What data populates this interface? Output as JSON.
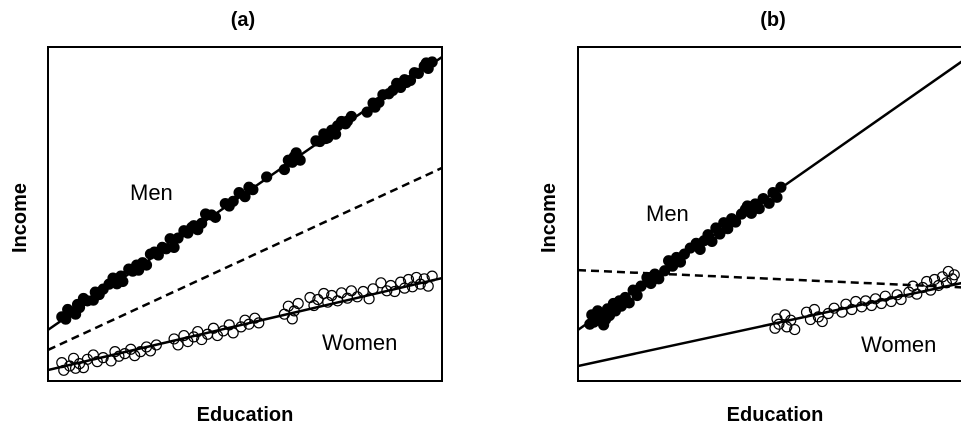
{
  "chart_data": [
    {
      "type": "scatter",
      "title": "(a)",
      "xlabel": "Education",
      "ylabel": "Income",
      "xlim": [
        0,
        100
      ],
      "ylim": [
        0,
        100
      ],
      "tick_labels": false,
      "grid": false,
      "legend": "none",
      "series": [
        {
          "name": "Men",
          "marker": "filled-circle",
          "color": "#000000",
          "points": [
            [
              3.5,
              19.2
            ],
            [
              4.5,
              18.5
            ],
            [
              5.0,
              21.4
            ],
            [
              6.0,
              20.7
            ],
            [
              7.0,
              20.0
            ],
            [
              7.5,
              22.9
            ],
            [
              8.0,
              22.0
            ],
            [
              9.0,
              24.7
            ],
            [
              10.0,
              24.0
            ],
            [
              11.5,
              24.2
            ],
            [
              12.0,
              26.6
            ],
            [
              13.0,
              25.9
            ],
            [
              14.0,
              27.5
            ],
            [
              15.5,
              29.0
            ],
            [
              16.5,
              30.8
            ],
            [
              17.5,
              29.1
            ],
            [
              18.5,
              31.4
            ],
            [
              19.0,
              29.8
            ],
            [
              20.5,
              33.5
            ],
            [
              21.5,
              32.9
            ],
            [
              22.5,
              34.7
            ],
            [
              23.0,
              33.2
            ],
            [
              24.0,
              35.4
            ],
            [
              25.0,
              34.7
            ],
            [
              26.0,
              38.0
            ],
            [
              27.0,
              38.6
            ],
            [
              28.0,
              37.7
            ],
            [
              29.0,
              40.0
            ],
            [
              30.0,
              39.6
            ],
            [
              31.0,
              42.6
            ],
            [
              32.0,
              40.0
            ],
            [
              33.0,
              42.8
            ],
            [
              34.5,
              45.0
            ],
            [
              35.5,
              44.3
            ],
            [
              36.5,
              46.0
            ],
            [
              37.0,
              46.5
            ],
            [
              38.0,
              45.3
            ],
            [
              39.0,
              47.2
            ],
            [
              40.0,
              50.0
            ],
            [
              41.5,
              49.7
            ],
            [
              42.5,
              49.0
            ],
            [
              45.0,
              53.1
            ],
            [
              46.0,
              52.4
            ],
            [
              47.0,
              53.8
            ],
            [
              48.5,
              56.4
            ],
            [
              50.0,
              55.2
            ],
            [
              51.0,
              58.0
            ],
            [
              52.0,
              57.3
            ],
            [
              55.5,
              61.1
            ],
            [
              60.0,
              63.3
            ],
            [
              61.0,
              66.1
            ],
            [
              62.0,
              65.5
            ],
            [
              62.5,
              67.2
            ],
            [
              63.0,
              68.3
            ],
            [
              64.0,
              66.1
            ],
            [
              68.0,
              71.9
            ],
            [
              69.0,
              71.7
            ],
            [
              70.0,
              74.0
            ],
            [
              70.5,
              72.6
            ],
            [
              71.0,
              72.8
            ],
            [
              72.0,
              75.1
            ],
            [
              73.0,
              73.9
            ],
            [
              73.5,
              76.4
            ],
            [
              74.5,
              77.7
            ],
            [
              75.5,
              77.0
            ],
            [
              76.0,
              77.8
            ],
            [
              77.0,
              79.2
            ],
            [
              81.0,
              80.5
            ],
            [
              82.5,
              83.2
            ],
            [
              83.0,
              82.0
            ],
            [
              84.0,
              83.4
            ],
            [
              85.0,
              85.7
            ],
            [
              86.5,
              86.0
            ],
            [
              87.5,
              87.0
            ],
            [
              88.5,
              89.1
            ],
            [
              89.5,
              87.9
            ],
            [
              90.5,
              90.2
            ],
            [
              91.0,
              89.4
            ],
            [
              92.0,
              90.0
            ],
            [
              93.0,
              92.3
            ],
            [
              94.0,
              92.1
            ],
            [
              95.5,
              94.3
            ],
            [
              96.0,
              95.2
            ],
            [
              96.5,
              93.6
            ],
            [
              97.5,
              95.5
            ]
          ],
          "fit": {
            "x": [
              0,
              100
            ],
            "y": [
              15.3,
              97.0
            ],
            "style": "solid"
          }
        },
        {
          "name": "Women",
          "marker": "open-circle",
          "color": "#000000",
          "points": [
            [
              3.5,
              5.5
            ],
            [
              4.0,
              3.2
            ],
            [
              5.5,
              4.5
            ],
            [
              6.5,
              6.8
            ],
            [
              7.0,
              3.8
            ],
            [
              8.0,
              5.2
            ],
            [
              9.0,
              4.0
            ],
            [
              10.0,
              6.5
            ],
            [
              11.5,
              7.8
            ],
            [
              12.5,
              5.8
            ],
            [
              14.0,
              7.0
            ],
            [
              16.0,
              6.0
            ],
            [
              17.0,
              8.8
            ],
            [
              18.0,
              7.4
            ],
            [
              19.5,
              8.2
            ],
            [
              21.0,
              9.5
            ],
            [
              22.0,
              7.6
            ],
            [
              23.5,
              8.8
            ],
            [
              25.0,
              10.2
            ],
            [
              26.0,
              9.0
            ],
            [
              27.5,
              10.8
            ],
            [
              32.0,
              12.6
            ],
            [
              33.0,
              10.8
            ],
            [
              34.5,
              13.6
            ],
            [
              35.5,
              11.8
            ],
            [
              37.0,
              13.2
            ],
            [
              38.0,
              14.8
            ],
            [
              39.0,
              12.4
            ],
            [
              40.5,
              14.0
            ],
            [
              42.0,
              15.8
            ],
            [
              43.0,
              13.6
            ],
            [
              44.5,
              15.0
            ],
            [
              46.0,
              16.8
            ],
            [
              47.0,
              14.4
            ],
            [
              49.0,
              16.2
            ],
            [
              50.0,
              18.2
            ],
            [
              51.0,
              17.0
            ],
            [
              52.5,
              18.8
            ],
            [
              53.5,
              17.4
            ],
            [
              60.0,
              20.0
            ],
            [
              61.0,
              22.4
            ],
            [
              62.0,
              18.6
            ],
            [
              62.5,
              21.0
            ],
            [
              63.5,
              23.2
            ],
            [
              66.5,
              25.0
            ],
            [
              67.5,
              22.6
            ],
            [
              68.5,
              24.4
            ],
            [
              70.0,
              26.2
            ],
            [
              71.0,
              23.6
            ],
            [
              72.0,
              25.6
            ],
            [
              73.5,
              24.0
            ],
            [
              74.5,
              26.4
            ],
            [
              76.0,
              24.8
            ],
            [
              77.0,
              27.0
            ],
            [
              78.5,
              25.2
            ],
            [
              80.0,
              26.8
            ],
            [
              81.5,
              24.6
            ],
            [
              82.5,
              27.6
            ],
            [
              84.5,
              29.4
            ],
            [
              86.0,
              27.0
            ],
            [
              87.0,
              28.6
            ],
            [
              88.0,
              26.8
            ],
            [
              89.5,
              29.6
            ],
            [
              90.5,
              27.8
            ],
            [
              91.5,
              30.4
            ],
            [
              92.5,
              28.2
            ],
            [
              93.5,
              31.0
            ],
            [
              94.5,
              29.0
            ],
            [
              95.5,
              30.6
            ],
            [
              96.5,
              28.4
            ],
            [
              97.5,
              31.4
            ]
          ],
          "fit": {
            "x": [
              0,
              100
            ],
            "y": [
              3.3,
              30.8
            ],
            "style": "solid"
          }
        }
      ],
      "overall_fit": {
        "x": [
          0,
          100
        ],
        "y": [
          9.3,
          63.8
        ],
        "style": "dashed",
        "color": "#000000"
      }
    },
    {
      "type": "scatter",
      "title": "(b)",
      "xlabel": "Education",
      "ylabel": "Income",
      "xlim": [
        0,
        100
      ],
      "ylim": [
        0,
        100
      ],
      "tick_labels": false,
      "grid": false,
      "legend": "none",
      "series": [
        {
          "name": "Men",
          "marker": "filled-circle",
          "color": "#000000",
          "points": [
            [
              3.0,
              17.0
            ],
            [
              3.5,
              19.8
            ],
            [
              4.0,
              17.6
            ],
            [
              4.5,
              18.2
            ],
            [
              5.0,
              21.0
            ],
            [
              6.0,
              19.4
            ],
            [
              6.5,
              16.8
            ],
            [
              7.0,
              18.4
            ],
            [
              7.5,
              21.6
            ],
            [
              8.0,
              19.6
            ],
            [
              9.0,
              23.2
            ],
            [
              9.5,
              21.0
            ],
            [
              10.0,
              22.6
            ],
            [
              10.5,
              24.0
            ],
            [
              11.0,
              22.4
            ],
            [
              12.0,
              25.0
            ],
            [
              13.0,
              23.4
            ],
            [
              14.0,
              27.2
            ],
            [
              15.0,
              25.6
            ],
            [
              16.0,
              28.4
            ],
            [
              17.5,
              31.0
            ],
            [
              18.5,
              29.2
            ],
            [
              19.5,
              32.0
            ],
            [
              20.5,
              30.6
            ],
            [
              22.0,
              33.0
            ],
            [
              23.0,
              36.0
            ],
            [
              24.0,
              34.4
            ],
            [
              25.0,
              37.0
            ],
            [
              26.0,
              35.6
            ],
            [
              27.0,
              38.0
            ],
            [
              28.5,
              39.8
            ],
            [
              30.0,
              41.2
            ],
            [
              31.0,
              39.4
            ],
            [
              32.0,
              42.0
            ],
            [
              33.0,
              43.8
            ],
            [
              34.0,
              41.8
            ],
            [
              35.0,
              45.8
            ],
            [
              36.0,
              44.0
            ],
            [
              37.0,
              47.4
            ],
            [
              38.0,
              45.6
            ],
            [
              39.0,
              48.6
            ],
            [
              40.0,
              47.6
            ],
            [
              41.5,
              50.0
            ],
            [
              42.5,
              51.4
            ],
            [
              43.0,
              52.4
            ],
            [
              44.0,
              50.2
            ],
            [
              45.0,
              53.0
            ],
            [
              46.0,
              51.6
            ],
            [
              47.0,
              54.6
            ],
            [
              48.5,
              53.2
            ],
            [
              49.5,
              56.4
            ],
            [
              50.5,
              55.0
            ],
            [
              51.5,
              58.0
            ]
          ],
          "fit": {
            "x": [
              0,
              100
            ],
            "y": [
              15.3,
              97.8
            ],
            "style": "solid"
          }
        },
        {
          "name": "Women",
          "marker": "open-circle",
          "color": "#000000",
          "points": [
            [
              50.0,
              15.8
            ],
            [
              50.5,
              18.6
            ],
            [
              51.0,
              17.0
            ],
            [
              52.5,
              19.8
            ],
            [
              53.0,
              16.2
            ],
            [
              54.0,
              18.2
            ],
            [
              55.0,
              15.4
            ],
            [
              58.0,
              20.6
            ],
            [
              59.0,
              18.4
            ],
            [
              60.0,
              21.4
            ],
            [
              61.0,
              19.2
            ],
            [
              62.0,
              17.8
            ],
            [
              63.5,
              20.2
            ],
            [
              65.0,
              21.8
            ],
            [
              67.0,
              20.6
            ],
            [
              68.0,
              23.0
            ],
            [
              69.5,
              21.4
            ],
            [
              70.5,
              23.8
            ],
            [
              72.0,
              22.2
            ],
            [
              73.0,
              24.0
            ],
            [
              74.5,
              22.6
            ],
            [
              75.5,
              24.6
            ],
            [
              77.0,
              23.2
            ],
            [
              78.0,
              25.4
            ],
            [
              79.5,
              23.8
            ],
            [
              81.0,
              25.8
            ],
            [
              82.0,
              24.4
            ],
            [
              84.0,
              26.6
            ],
            [
              85.0,
              28.4
            ],
            [
              86.0,
              26.0
            ],
            [
              87.5,
              28.0
            ],
            [
              88.5,
              29.8
            ],
            [
              89.5,
              27.2
            ],
            [
              90.5,
              30.4
            ],
            [
              91.5,
              28.6
            ],
            [
              92.5,
              31.2
            ],
            [
              93.5,
              29.4
            ],
            [
              94.0,
              32.8
            ],
            [
              95.0,
              30.6
            ],
            [
              95.5,
              31.8
            ]
          ],
          "fit": {
            "x": [
              0,
              100
            ],
            "y": [
              4.5,
              30.0
            ],
            "style": "solid"
          }
        }
      ],
      "overall_fit": {
        "x": [
          0,
          100
        ],
        "y": [
          33.2,
          27.9
        ],
        "style": "dashed",
        "color": "#000000"
      }
    }
  ]
}
